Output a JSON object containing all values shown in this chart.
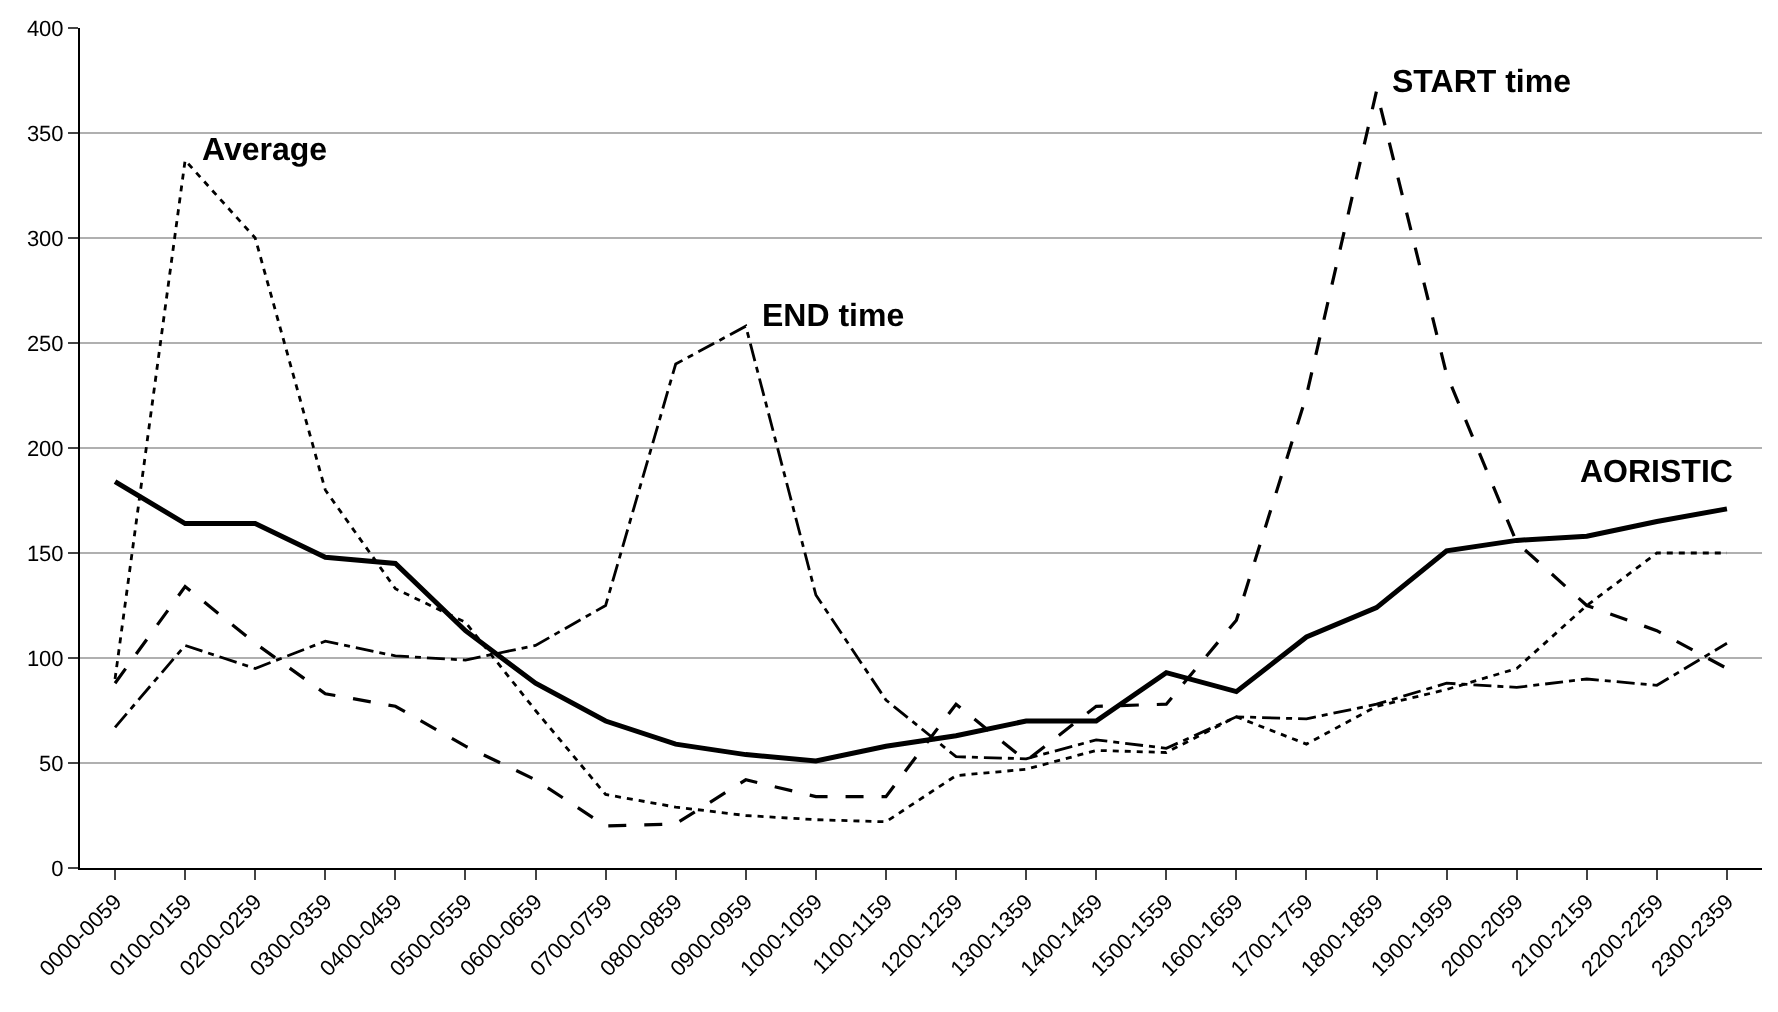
{
  "chart_data": {
    "type": "line",
    "categories": [
      "0000-0059",
      "0100-0159",
      "0200-0259",
      "0300-0359",
      "0400-0459",
      "0500-0559",
      "0600-0659",
      "0700-0759",
      "0800-0859",
      "0900-0959",
      "1000-1059",
      "1100-1159",
      "1200-1259",
      "1300-1359",
      "1400-1459",
      "1500-1559",
      "1600-1659",
      "1700-1759",
      "1800-1859",
      "1900-1959",
      "2000-2059",
      "2100-2159",
      "2200-2259",
      "2300-2359"
    ],
    "series": [
      {
        "color": "#000000",
        "line_style": "solid",
        "values": [
          184,
          164,
          164,
          148,
          145,
          113,
          88,
          70,
          59,
          54,
          51,
          58,
          63,
          70,
          70,
          93,
          84,
          110,
          124,
          151,
          156,
          158,
          165,
          171
        ]
      },
      {
        "color": "#000000",
        "line_style": "dashed",
        "values": [
          88,
          134,
          107,
          83,
          77,
          58,
          42,
          20,
          21,
          42,
          34,
          34,
          78,
          51,
          77,
          78,
          118,
          225,
          370,
          235,
          155,
          125,
          113,
          95
        ]
      },
      {
        "color": "#000000",
        "line_style": "dashdot",
        "values": [
          67,
          106,
          95,
          108,
          101,
          99,
          106,
          125,
          240,
          258,
          130,
          80,
          53,
          52,
          61,
          57,
          72,
          71,
          78,
          88,
          86,
          90,
          87,
          107
        ]
      },
      {
        "color": "#000000",
        "line_style": "dotted",
        "values": [
          90,
          337,
          300,
          180,
          133,
          117,
          75,
          35,
          29,
          25,
          23,
          22,
          44,
          47,
          56,
          55,
          72,
          59,
          77,
          85,
          95,
          125,
          150,
          150
        ]
      }
    ],
    "ylim": [
      0,
      400
    ],
    "yticks": [
      0,
      50,
      100,
      150,
      200,
      250,
      300,
      350,
      400
    ],
    "grid": "y",
    "annotations": [
      {
        "text": "AORISTIC",
        "x": "2200-2259",
        "y": 165
      },
      {
        "text": "START time",
        "x": "1800-1859",
        "y": 370
      },
      {
        "text": "END time",
        "x": "0900-0959",
        "y": 258
      },
      {
        "text": "Average",
        "x": "0100-0159",
        "y": 337
      }
    ]
  }
}
